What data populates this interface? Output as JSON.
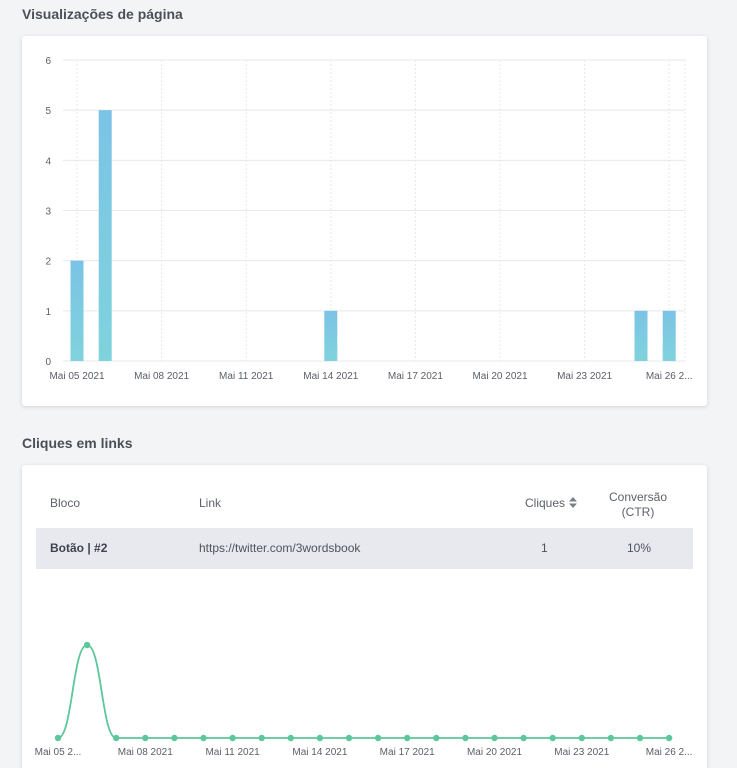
{
  "page_views": {
    "title": "Visualizações de página"
  },
  "link_clicks": {
    "title": "Cliques em links",
    "table": {
      "headers": {
        "block": "Bloco",
        "link": "Link",
        "clicks": "Cliques",
        "conversion_line1": "Conversão",
        "conversion_line2": "(CTR)"
      },
      "rows": [
        {
          "block": "Botão | #2",
          "link": "https://twitter.com/3wordsbook",
          "clicks": "1",
          "conversion": "10%"
        }
      ]
    }
  },
  "chart_data": [
    {
      "type": "bar",
      "x": [
        "2021-05-05",
        "2021-05-06",
        "2021-05-14",
        "2021-05-25",
        "2021-05-26"
      ],
      "values": [
        2,
        5,
        1,
        1,
        1
      ],
      "x_ticks": [
        "Mai 05 2021",
        "Mai 08 2021",
        "Mai 11 2021",
        "Mai 14 2021",
        "Mai 17 2021",
        "Mai 20 2021",
        "Mai 23 2021",
        "Mai 26 2..."
      ],
      "y_ticks": [
        "0",
        "1",
        "2",
        "3",
        "4",
        "5",
        "6"
      ],
      "ylim": [
        0,
        6
      ],
      "grid": true,
      "color": "#7fd3dc",
      "color_top": "#7bc3e6"
    },
    {
      "type": "line",
      "x": [
        "2021-05-05",
        "2021-05-06",
        "2021-05-07",
        "2021-05-08",
        "2021-05-09",
        "2021-05-10",
        "2021-05-11",
        "2021-05-12",
        "2021-05-13",
        "2021-05-14",
        "2021-05-15",
        "2021-05-16",
        "2021-05-17",
        "2021-05-18",
        "2021-05-19",
        "2021-05-20",
        "2021-05-21",
        "2021-05-22",
        "2021-05-23",
        "2021-05-24",
        "2021-05-25",
        "2021-05-26"
      ],
      "values": [
        0,
        1,
        0,
        0,
        0,
        0,
        0,
        0,
        0,
        0,
        0,
        0,
        0,
        0,
        0,
        0,
        0,
        0,
        0,
        0,
        0,
        0
      ],
      "x_ticks": [
        "Mai 05 2...",
        "Mai 08 2021",
        "Mai 11 2021",
        "Mai 14 2021",
        "Mai 17 2021",
        "Mai 20 2021",
        "Mai 23 2021",
        "Mai 26 2..."
      ],
      "color": "#5cc79a"
    }
  ]
}
